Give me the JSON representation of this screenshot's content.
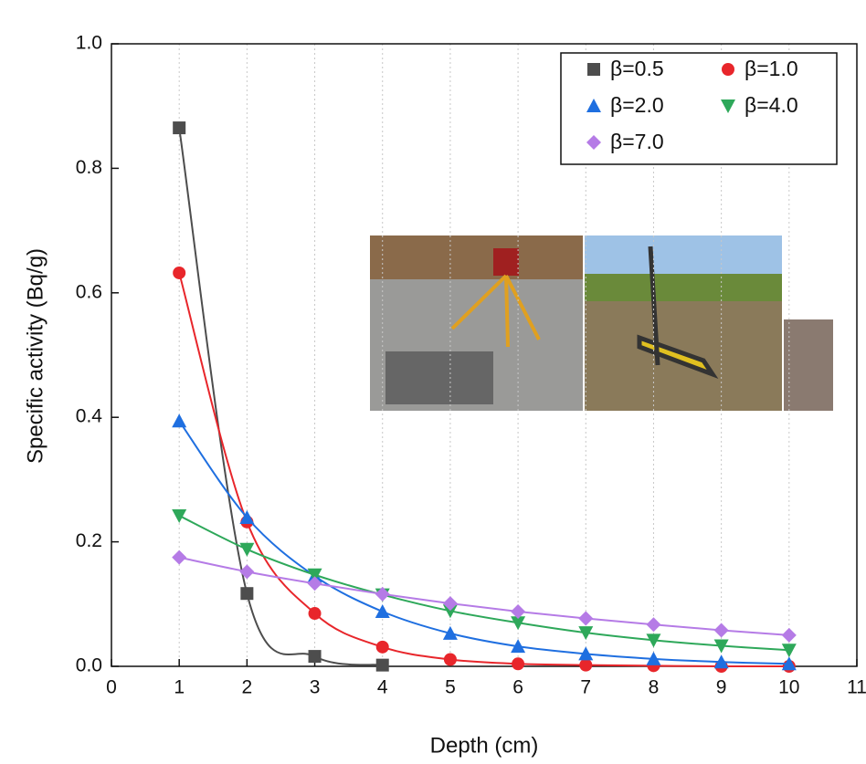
{
  "chart_data": {
    "type": "line",
    "x_label": "Depth (cm)",
    "y_label": "Specific activity (Bq/g)",
    "x": [
      1,
      2,
      3,
      4,
      5,
      6,
      7,
      8,
      9,
      10
    ],
    "series": [
      {
        "name": "β=0.5",
        "color": "#4d4d4d",
        "marker": "square",
        "values": [
          0.865,
          0.117,
          0.016,
          0.002,
          null,
          null,
          null,
          null,
          null,
          null
        ]
      },
      {
        "name": "β=1.0",
        "color": "#e8262b",
        "marker": "circle",
        "values": [
          0.632,
          0.232,
          0.085,
          0.031,
          0.011,
          0.004,
          0.002,
          0.001,
          0,
          0
        ]
      },
      {
        "name": "β=2.0",
        "color": "#1f6fe0",
        "marker": "triangle-up",
        "values": [
          0.394,
          0.239,
          0.145,
          0.088,
          0.053,
          0.032,
          0.02,
          0.012,
          0.007,
          0.004
        ]
      },
      {
        "name": "β=4.0",
        "color": "#2ea85a",
        "marker": "triangle-down",
        "values": [
          0.242,
          0.188,
          0.147,
          0.115,
          0.089,
          0.07,
          0.054,
          0.042,
          0.033,
          0.026
        ]
      },
      {
        "name": "β=7.0",
        "color": "#b57be6",
        "marker": "diamond",
        "values": [
          0.175,
          0.152,
          0.133,
          0.116,
          0.101,
          0.088,
          0.077,
          0.067,
          0.058,
          0.05
        ]
      }
    ],
    "xlim": [
      0,
      11
    ],
    "xticks": [
      0,
      1,
      2,
      3,
      4,
      5,
      6,
      7,
      8,
      9,
      10,
      11
    ],
    "ylim": [
      0,
      1.0
    ],
    "yticks": [
      {
        "value": 0,
        "label": "0.0"
      },
      0.2,
      0.4,
      0.6,
      0.8,
      {
        "value": 1.0,
        "label": "1.0"
      }
    ],
    "grid": "x",
    "legend": "upper right"
  }
}
